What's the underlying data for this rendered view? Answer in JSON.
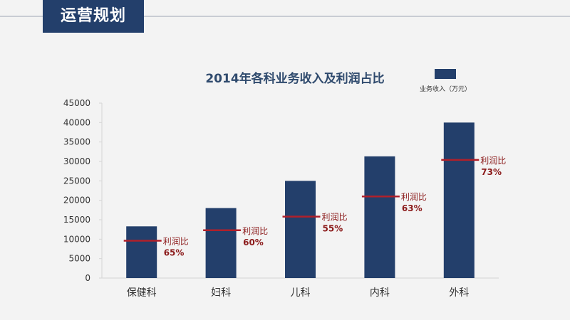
{
  "header": {
    "title": "运营规划"
  },
  "chart_data": {
    "type": "bar",
    "title": "2014年各科业务收入及利润占比",
    "categories": [
      "保健科",
      "妇科",
      "儿科",
      "内科",
      "外科"
    ],
    "series": [
      {
        "name": "业务收入（万元）",
        "values": [
          13300,
          18000,
          25000,
          31300,
          40000
        ]
      }
    ],
    "profit_ratio": {
      "label": "利润比",
      "values": [
        "65%",
        "60%",
        "55%",
        "63%",
        "73%"
      ],
      "marker_levels": [
        9600,
        12300,
        15800,
        21000,
        30400
      ]
    },
    "ylim": [
      0,
      45000
    ],
    "yticks": [
      0,
      5000,
      10000,
      15000,
      20000,
      25000,
      30000,
      35000,
      40000,
      45000
    ],
    "grid": false,
    "legend_position": "top-right",
    "colors": {
      "bar": "#233f6b",
      "ratio_line": "#b0202b",
      "ratio_text": "#8b1a1a",
      "header_bg": "#233f6b"
    }
  }
}
